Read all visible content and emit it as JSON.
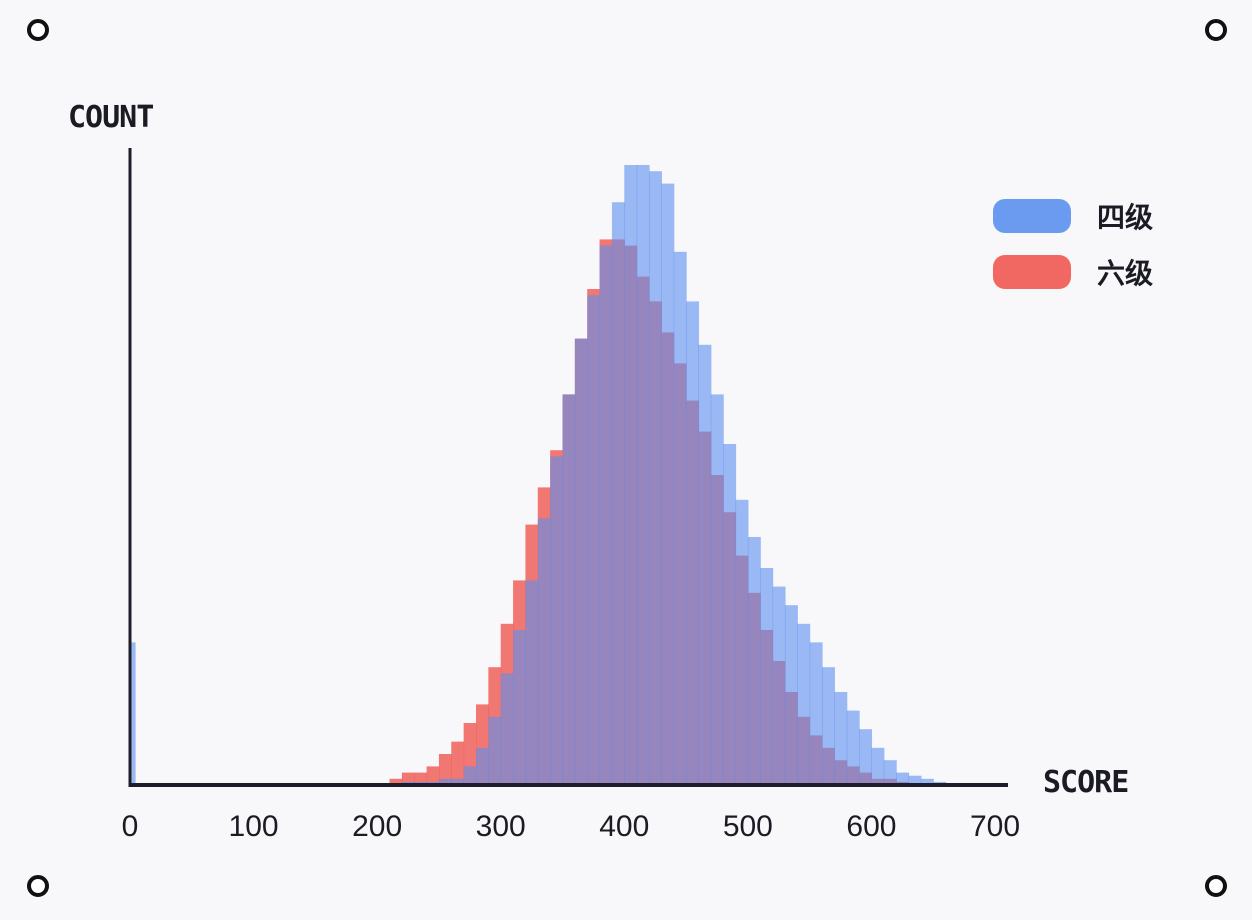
{
  "chart_data": {
    "type": "histogram",
    "xlabel": "SCORE",
    "ylabel": "COUNT",
    "xlim": [
      0,
      700
    ],
    "xticks": [
      "0",
      "100",
      "200",
      "300",
      "400",
      "500",
      "600",
      "700"
    ],
    "grid": false,
    "legend_position": "top-right",
    "bin_width": 10,
    "series": [
      {
        "name": "四级",
        "color": "#5b8ff0",
        "bins": [
          [
            0,
            23
          ],
          [
            220,
            0.5
          ],
          [
            230,
            0.5
          ],
          [
            240,
            0.5
          ],
          [
            250,
            1
          ],
          [
            260,
            1
          ],
          [
            270,
            3
          ],
          [
            280,
            6
          ],
          [
            290,
            11
          ],
          [
            300,
            18
          ],
          [
            310,
            25
          ],
          [
            320,
            33
          ],
          [
            330,
            43
          ],
          [
            340,
            53
          ],
          [
            350,
            63
          ],
          [
            360,
            72
          ],
          [
            370,
            79
          ],
          [
            380,
            87
          ],
          [
            390,
            94
          ],
          [
            400,
            100
          ],
          [
            410,
            100
          ],
          [
            420,
            99
          ],
          [
            430,
            97
          ],
          [
            440,
            86
          ],
          [
            450,
            78
          ],
          [
            460,
            71
          ],
          [
            470,
            63
          ],
          [
            480,
            55
          ],
          [
            490,
            46
          ],
          [
            500,
            40
          ],
          [
            510,
            35
          ],
          [
            520,
            32
          ],
          [
            530,
            29
          ],
          [
            540,
            26
          ],
          [
            550,
            23
          ],
          [
            560,
            19
          ],
          [
            570,
            15
          ],
          [
            580,
            12
          ],
          [
            590,
            9
          ],
          [
            600,
            6
          ],
          [
            610,
            4
          ],
          [
            620,
            2
          ],
          [
            630,
            1.5
          ],
          [
            640,
            1
          ],
          [
            650,
            0.5
          ]
        ]
      },
      {
        "name": "六级",
        "color": "#f0605a",
        "bins": [
          [
            210,
            1
          ],
          [
            220,
            2
          ],
          [
            230,
            2
          ],
          [
            240,
            3
          ],
          [
            250,
            5
          ],
          [
            260,
            7
          ],
          [
            270,
            10
          ],
          [
            280,
            13
          ],
          [
            290,
            19
          ],
          [
            300,
            26
          ],
          [
            310,
            33
          ],
          [
            320,
            42
          ],
          [
            330,
            48
          ],
          [
            340,
            54
          ],
          [
            350,
            63
          ],
          [
            360,
            72
          ],
          [
            370,
            80
          ],
          [
            380,
            88
          ],
          [
            390,
            88
          ],
          [
            400,
            87
          ],
          [
            410,
            82
          ],
          [
            420,
            78
          ],
          [
            430,
            73
          ],
          [
            440,
            68
          ],
          [
            450,
            62
          ],
          [
            460,
            57
          ],
          [
            470,
            50
          ],
          [
            480,
            44
          ],
          [
            490,
            37
          ],
          [
            500,
            31
          ],
          [
            510,
            25
          ],
          [
            520,
            20
          ],
          [
            530,
            15
          ],
          [
            540,
            11
          ],
          [
            550,
            8
          ],
          [
            560,
            6
          ],
          [
            570,
            4
          ],
          [
            580,
            3
          ],
          [
            590,
            2
          ],
          [
            600,
            1
          ],
          [
            610,
            1
          ],
          [
            620,
            0.5
          ]
        ]
      }
    ]
  }
}
